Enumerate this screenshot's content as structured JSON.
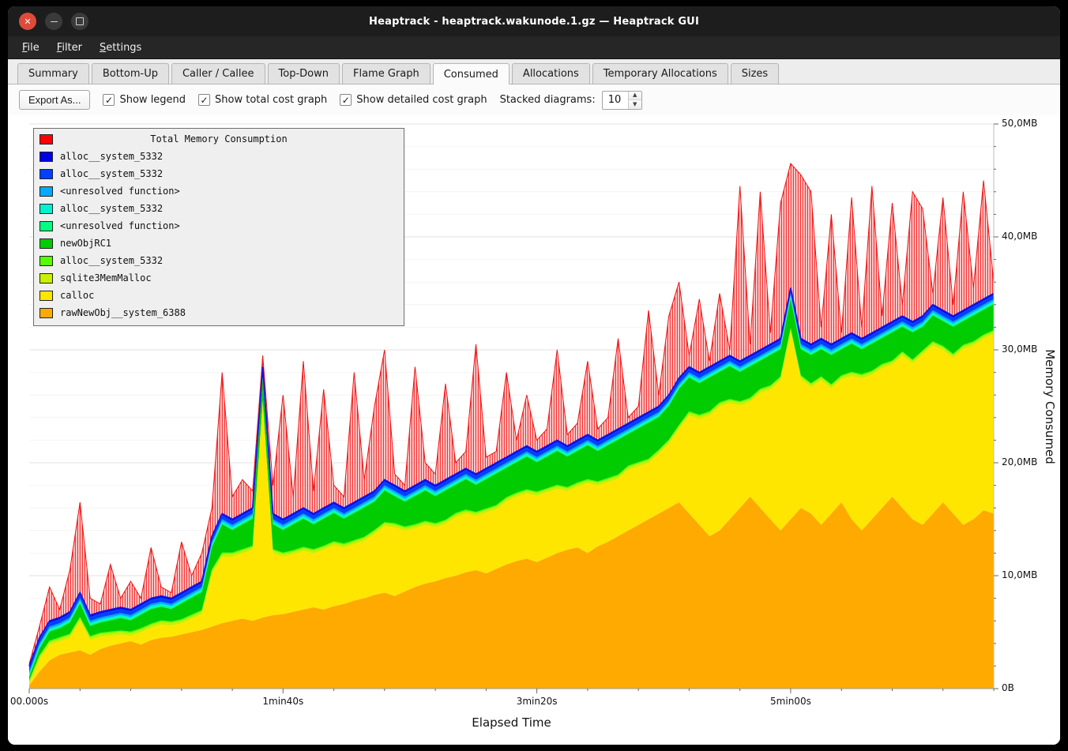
{
  "window": {
    "title": "Heaptrack - heaptrack.wakunode.1.gz — Heaptrack GUI"
  },
  "menu": {
    "items": [
      "File",
      "Filter",
      "Settings"
    ]
  },
  "tabs": {
    "items": [
      "Summary",
      "Bottom-Up",
      "Caller / Callee",
      "Top-Down",
      "Flame Graph",
      "Consumed",
      "Allocations",
      "Temporary Allocations",
      "Sizes"
    ],
    "selected": "Consumed",
    "selected_index": 5
  },
  "toolbar": {
    "export_label": "Export As...",
    "checkboxes": [
      {
        "label": "Show legend",
        "checked": true
      },
      {
        "label": "Show total cost graph",
        "checked": true
      },
      {
        "label": "Show detailed cost graph",
        "checked": true
      }
    ],
    "stacked_label": "Stacked diagrams:",
    "stacked_value": "10"
  },
  "chart": {
    "legend_title": "Total Memory Consumption",
    "legend_title_color": "#ff0000",
    "legend": [
      {
        "label": "alloc__system_5332",
        "color": "#0000e6"
      },
      {
        "label": "alloc__system_5332",
        "color": "#0040ff"
      },
      {
        "label": "<unresolved function>",
        "color": "#00aaff"
      },
      {
        "label": "alloc__system_5332",
        "color": "#00f2d0"
      },
      {
        "label": "<unresolved function>",
        "color": "#00ff7f"
      },
      {
        "label": "newObjRC1",
        "color": "#00cc00"
      },
      {
        "label": "alloc__system_5332",
        "color": "#55ff00"
      },
      {
        "label": "sqlite3MemMalloc",
        "color": "#c8f000"
      },
      {
        "label": "calloc",
        "color": "#ffe600"
      },
      {
        "label": "rawNewObj__system_6388",
        "color": "#ffaa00"
      }
    ],
    "xlabel": "Elapsed Time",
    "ylabel": "Memory Consumed",
    "x_ticks": [
      {
        "t": 0,
        "label": "00.000s"
      },
      {
        "t": 100,
        "label": "1min40s"
      },
      {
        "t": 200,
        "label": "3min20s"
      },
      {
        "t": 300,
        "label": "5min00s"
      }
    ],
    "y_ticks": [
      {
        "mb": 0,
        "label": "0B"
      },
      {
        "mb": 10,
        "label": "10,0MB"
      },
      {
        "mb": 20,
        "label": "20,0MB"
      },
      {
        "mb": 30,
        "label": "30,0MB"
      },
      {
        "mb": 40,
        "label": "40,0MB"
      },
      {
        "mb": 50,
        "label": "50,0MB"
      }
    ]
  },
  "chart_data": {
    "type": "area",
    "stacked": true,
    "title": "Total Memory Consumption",
    "xlabel": "Elapsed Time",
    "ylabel": "Memory Consumed",
    "xlim": [
      0,
      380
    ],
    "ylim": [
      0,
      50
    ],
    "grid": true,
    "legend_position": "top-left",
    "x_seconds": [
      0,
      4,
      8,
      12,
      16,
      20,
      24,
      28,
      32,
      36,
      40,
      44,
      48,
      52,
      56,
      60,
      64,
      68,
      72,
      76,
      80,
      84,
      88,
      92,
      96,
      100,
      104,
      108,
      112,
      116,
      120,
      124,
      128,
      132,
      136,
      140,
      144,
      148,
      152,
      156,
      160,
      164,
      168,
      172,
      176,
      180,
      184,
      188,
      192,
      196,
      200,
      204,
      208,
      212,
      216,
      220,
      224,
      228,
      232,
      236,
      240,
      244,
      248,
      252,
      256,
      260,
      264,
      268,
      272,
      276,
      280,
      284,
      288,
      292,
      296,
      300,
      304,
      308,
      312,
      316,
      320,
      324,
      328,
      332,
      336,
      340,
      344,
      348,
      352,
      356,
      360,
      364,
      368,
      372,
      376,
      380
    ],
    "total_mb": [
      2.2,
      5.5,
      9.0,
      7.0,
      10.5,
      16.5,
      8.0,
      7.5,
      11.0,
      8.0,
      9.5,
      8.0,
      12.5,
      9.0,
      8.5,
      13.0,
      10.0,
      12.0,
      16.0,
      28.0,
      17.0,
      18.5,
      17.5,
      29.5,
      18.0,
      26.0,
      17.0,
      29.0,
      17.5,
      26.5,
      18.0,
      17.0,
      28.0,
      18.5,
      25.0,
      30.0,
      19.0,
      18.0,
      28.5,
      20.0,
      19.0,
      27.0,
      20.0,
      21.0,
      30.5,
      20.5,
      21.0,
      28.0,
      22.0,
      26.0,
      22.0,
      23.0,
      30.0,
      22.5,
      23.5,
      29.0,
      23.0,
      24.0,
      31.0,
      24.0,
      25.0,
      33.5,
      26.0,
      33.0,
      36.0,
      29.5,
      34.5,
      29.0,
      35.0,
      30.0,
      44.5,
      30.5,
      44.0,
      31.5,
      43.0,
      46.5,
      45.5,
      44.0,
      32.0,
      42.0,
      31.5,
      43.5,
      32.0,
      44.5,
      33.0,
      43.0,
      34.0,
      44.0,
      42.5,
      35.0,
      43.5,
      34.0,
      44.0,
      35.5,
      45.0,
      36.0
    ],
    "stack_top_mb": [
      2.0,
      4.5,
      6.0,
      6.3,
      6.8,
      8.5,
      6.5,
      6.8,
      7.0,
      7.2,
      7.0,
      7.5,
      8.0,
      8.2,
      8.0,
      8.5,
      9.0,
      9.5,
      13.5,
      15.5,
      15.0,
      15.5,
      16.0,
      28.5,
      15.5,
      15.0,
      15.5,
      16.0,
      15.5,
      16.0,
      16.5,
      16.0,
      16.5,
      17.0,
      17.5,
      18.5,
      18.0,
      17.5,
      18.0,
      18.5,
      18.0,
      18.5,
      19.0,
      19.5,
      19.0,
      19.5,
      20.0,
      20.5,
      21.0,
      21.5,
      21.0,
      21.5,
      22.0,
      21.5,
      22.0,
      22.5,
      22.0,
      22.5,
      23.0,
      23.5,
      24.0,
      24.5,
      25.0,
      26.0,
      27.5,
      28.5,
      28.0,
      28.5,
      29.0,
      29.5,
      29.0,
      29.5,
      30.0,
      30.5,
      31.0,
      35.5,
      31.0,
      30.5,
      31.0,
      30.5,
      31.0,
      31.5,
      31.0,
      31.5,
      32.0,
      32.5,
      33.0,
      32.5,
      33.0,
      34.0,
      33.5,
      33.0,
      33.5,
      34.0,
      34.5,
      35.0
    ],
    "series": [
      {
        "name": "rawNewObj__system_6388",
        "color": "#ffaa00",
        "values": [
          0.3,
          1.5,
          2.5,
          3.0,
          3.2,
          3.4,
          3.0,
          3.5,
          3.8,
          4.0,
          4.2,
          3.9,
          4.3,
          4.5,
          4.6,
          4.8,
          5.0,
          5.2,
          5.5,
          5.8,
          6.0,
          6.2,
          6.0,
          6.3,
          6.5,
          6.6,
          6.8,
          7.0,
          7.2,
          7.0,
          7.3,
          7.5,
          7.8,
          8.0,
          8.3,
          8.5,
          8.2,
          8.6,
          9.0,
          9.3,
          9.5,
          9.8,
          10.0,
          10.3,
          10.5,
          10.2,
          10.6,
          11.0,
          11.3,
          11.5,
          11.2,
          11.6,
          12.0,
          12.3,
          12.5,
          12.0,
          12.6,
          13.0,
          13.5,
          14.0,
          14.5,
          15.0,
          15.5,
          16.0,
          16.5,
          15.5,
          14.5,
          13.5,
          14.0,
          15.0,
          16.0,
          17.0,
          16.0,
          15.0,
          14.0,
          15.0,
          16.0,
          15.5,
          14.5,
          15.5,
          16.5,
          15.0,
          14.0,
          15.0,
          16.0,
          17.0,
          16.0,
          15.0,
          14.5,
          15.5,
          16.5,
          15.5,
          14.5,
          15.0,
          15.8,
          15.5
        ]
      },
      {
        "name": "calloc",
        "color": "#ffe600",
        "values": [
          0.08,
          1.08,
          1.38,
          1.18,
          1.28,
          2.58,
          1.28,
          1.08,
          0.88,
          0.78,
          0.48,
          1.08,
          1.08,
          1.18,
          0.98,
          0.98,
          1.18,
          1.38,
          4.68,
          5.88,
          5.68,
          5.78,
          6.28,
          18.88,
          5.48,
          5.08,
          5.08,
          5.18,
          4.78,
          5.28,
          5.38,
          4.98,
          4.98,
          5.08,
          5.38,
          5.88,
          6.08,
          5.38,
          5.18,
          5.18,
          4.78,
          4.78,
          5.18,
          5.18,
          4.78,
          5.38,
          5.28,
          5.58,
          5.68,
          5.78,
          5.88,
          5.78,
          5.68,
          5.18,
          5.38,
          6.18,
          5.38,
          5.28,
          5.08,
          5.38,
          5.18,
          4.98,
          5.28,
          5.68,
          6.48,
          8.68,
          9.38,
          10.68,
          10.98,
          10.28,
          9.08,
          8.38,
          10.18,
          11.48,
          13.28,
          16.58,
          11.38,
          11.18,
          12.78,
          11.08,
          10.88,
          12.68,
          13.48,
          12.78,
          12.38,
          11.68,
          13.48,
          13.78,
          15.08,
          14.88,
          13.48,
          13.78,
          15.58,
          15.38,
          15.18,
          15.88
        ]
      },
      {
        "name": "sqlite3MemMalloc",
        "color": "#c8f000",
        "thickness_mb": 0.25
      },
      {
        "name": "alloc__system_5332",
        "color": "#55ff00",
        "thickness_mb": 0.12
      },
      {
        "name": "newObjRC1",
        "color": "#00cc00",
        "values": [
          0.3,
          0.6,
          0.8,
          0.8,
          1.0,
          1.2,
          0.9,
          0.9,
          1.0,
          1.1,
          1.0,
          1.2,
          1.3,
          1.2,
          1.1,
          1.4,
          1.5,
          1.6,
          2.0,
          2.5,
          2.0,
          2.2,
          2.4,
          2.0,
          2.2,
          2.0,
          2.3,
          2.5,
          2.2,
          2.4,
          2.5,
          2.2,
          2.4,
          2.6,
          2.5,
          2.8,
          2.4,
          2.2,
          2.5,
          2.7,
          2.4,
          2.6,
          2.5,
          2.7,
          2.4,
          2.6,
          2.8,
          2.6,
          2.7,
          2.9,
          2.6,
          2.8,
          3.0,
          2.7,
          2.8,
          3.0,
          2.7,
          2.9,
          3.1,
          2.8,
          3.0,
          3.2,
          2.9,
          3.0,
          3.2,
          3.0,
          2.8,
          3.0,
          2.7,
          2.9,
          2.6,
          2.8,
          2.5,
          2.7,
          2.4,
          2.6,
          2.3,
          2.5,
          2.4,
          2.6,
          2.3,
          2.5,
          2.2,
          2.4,
          2.3,
          2.5,
          2.2,
          2.4,
          2.1,
          2.3,
          2.2,
          2.4,
          2.1,
          2.3,
          2.2,
          2.3
        ]
      },
      {
        "name": "<unresolved function>",
        "color": "#00ff7f",
        "thickness_mb": 0.12
      },
      {
        "name": "alloc__system_5332",
        "color": "#00f2d0",
        "thickness_mb": 0.15
      },
      {
        "name": "<unresolved function>",
        "color": "#00aaff",
        "thickness_mb": 0.18
      },
      {
        "name": "alloc__system_5332",
        "color": "#0040ff",
        "thickness_mb": 0.35
      },
      {
        "name": "alloc__system_5332",
        "color": "#0000e6",
        "thickness_mb": 0.15
      }
    ],
    "total_series_name": "Total Memory Consumption",
    "total_color": "#ff0000"
  }
}
